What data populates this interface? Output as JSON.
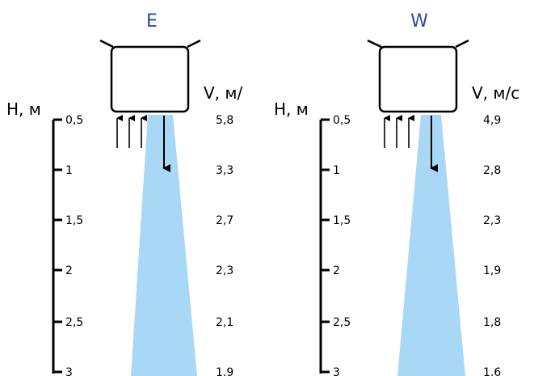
{
  "panels": [
    {
      "title": "E",
      "h_label": "H, м",
      "v_label": "V, м/",
      "heights": [
        "0,5",
        "1",
        "1,5",
        "2",
        "2,5",
        "3"
      ],
      "velocities": [
        "5,8",
        "3,3",
        "2,7",
        "2,3",
        "2,1",
        "1,9"
      ]
    },
    {
      "title": "W",
      "h_label": "H, м",
      "v_label": "V, м/с",
      "heights": [
        "0,5",
        "1",
        "1,5",
        "2",
        "2,5",
        "3"
      ],
      "velocities": [
        "4,9",
        "2,8",
        "2,3",
        "1,9",
        "1,8",
        "1,6"
      ]
    }
  ],
  "colors": {
    "title": "#2b4aa0",
    "stream": "#a8d8f5",
    "line": "#000000"
  }
}
